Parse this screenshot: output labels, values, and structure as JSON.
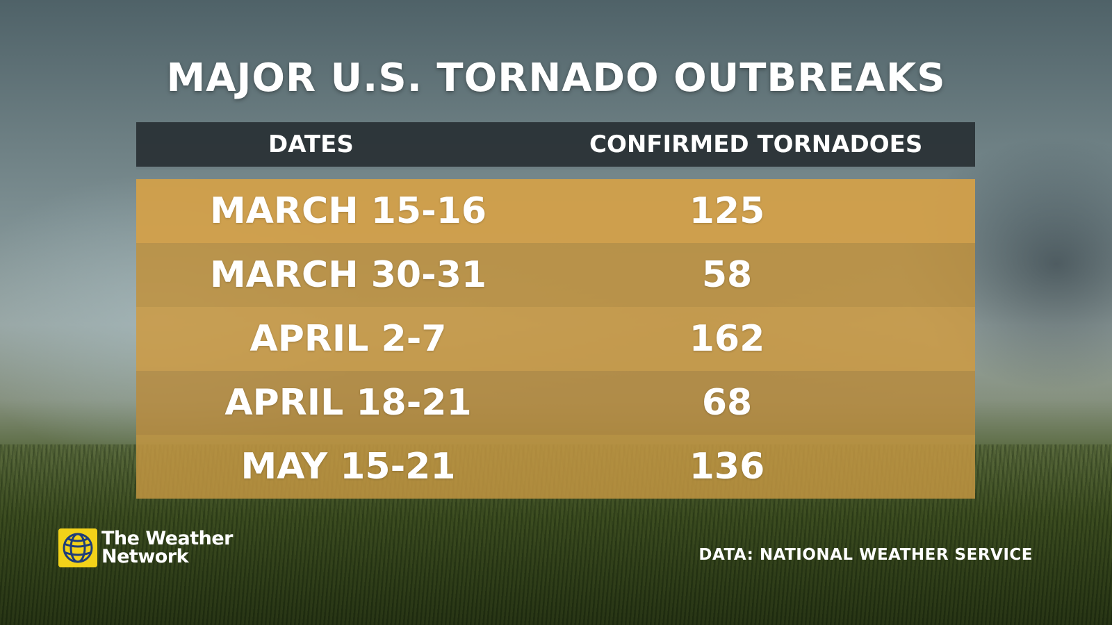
{
  "title": "MAJOR U.S. TORNADO OUTBREAKS",
  "source": "DATA: NATIONAL WEATHER SERVICE",
  "logo": {
    "line1": "The Weather",
    "line2": "Network",
    "icon": "weather-network-globe-icon",
    "color": "#f3d219"
  },
  "colors": {
    "header_bg": "#283034",
    "row_bg": "#d4a048",
    "text": "#ffffff"
  },
  "chart_data": {
    "type": "table",
    "title": "MAJOR U.S. TORNADO OUTBREAKS",
    "columns": [
      "DATES",
      "CONFIRMED TORNADOES"
    ],
    "rows": [
      [
        "MARCH 15-16",
        "125"
      ],
      [
        "MARCH 30-31",
        "58"
      ],
      [
        "APRIL 2-7",
        "162"
      ],
      [
        "APRIL 18-21",
        "68"
      ],
      [
        "MAY 15-21",
        "136"
      ]
    ]
  }
}
